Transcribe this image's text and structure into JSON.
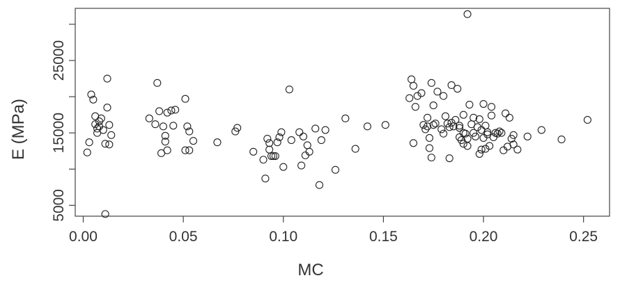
{
  "chart_data": {
    "type": "scatter",
    "title": "",
    "xlabel": "MC",
    "ylabel": "E (MPa)",
    "xlim": [
      -0.004,
      0.263
    ],
    "ylim": [
      3500,
      32200
    ],
    "grid": false,
    "xticks": [
      0.0,
      0.05,
      0.1,
      0.15,
      0.2,
      0.25
    ],
    "xtick_labels": [
      "0.00",
      "0.05",
      "0.10",
      "0.15",
      "0.20",
      "0.25"
    ],
    "yticks": [
      5000,
      15000,
      25000
    ],
    "ytick_labels": [
      "5000",
      "15000",
      "25000"
    ],
    "ytick_marks": [
      5000,
      10000,
      15000,
      20000,
      25000,
      30000
    ],
    "marker": "open-circle",
    "points": [
      [
        0.002,
        12300
      ],
      [
        0.003,
        13700
      ],
      [
        0.004,
        20300
      ],
      [
        0.005,
        19600
      ],
      [
        0.006,
        17300
      ],
      [
        0.006,
        16200
      ],
      [
        0.007,
        15600
      ],
      [
        0.007,
        15000
      ],
      [
        0.008,
        15900
      ],
      [
        0.008,
        16600
      ],
      [
        0.009,
        17000
      ],
      [
        0.01,
        15400
      ],
      [
        0.011,
        13500
      ],
      [
        0.011,
        3800
      ],
      [
        0.012,
        22500
      ],
      [
        0.012,
        18500
      ],
      [
        0.013,
        16100
      ],
      [
        0.013,
        13400
      ],
      [
        0.014,
        14700
      ],
      [
        0.033,
        17000
      ],
      [
        0.036,
        16200
      ],
      [
        0.037,
        21900
      ],
      [
        0.038,
        18000
      ],
      [
        0.039,
        12200
      ],
      [
        0.04,
        15900
      ],
      [
        0.041,
        14600
      ],
      [
        0.041,
        13800
      ],
      [
        0.042,
        12600
      ],
      [
        0.042,
        17800
      ],
      [
        0.044,
        18100
      ],
      [
        0.045,
        16000
      ],
      [
        0.046,
        18200
      ],
      [
        0.051,
        19700
      ],
      [
        0.051,
        12600
      ],
      [
        0.052,
        15900
      ],
      [
        0.053,
        12600
      ],
      [
        0.053,
        15200
      ],
      [
        0.055,
        13900
      ],
      [
        0.067,
        13700
      ],
      [
        0.076,
        15200
      ],
      [
        0.077,
        15700
      ],
      [
        0.085,
        12400
      ],
      [
        0.09,
        11300
      ],
      [
        0.091,
        8700
      ],
      [
        0.092,
        14200
      ],
      [
        0.093,
        13600
      ],
      [
        0.093,
        12700
      ],
      [
        0.094,
        11800
      ],
      [
        0.095,
        11800
      ],
      [
        0.096,
        11800
      ],
      [
        0.097,
        13700
      ],
      [
        0.098,
        14400
      ],
      [
        0.099,
        15100
      ],
      [
        0.1,
        10300
      ],
      [
        0.103,
        21000
      ],
      [
        0.104,
        14000
      ],
      [
        0.108,
        15100
      ],
      [
        0.109,
        10500
      ],
      [
        0.11,
        14500
      ],
      [
        0.111,
        11900
      ],
      [
        0.112,
        13300
      ],
      [
        0.113,
        12400
      ],
      [
        0.116,
        15600
      ],
      [
        0.118,
        7800
      ],
      [
        0.119,
        14000
      ],
      [
        0.121,
        15400
      ],
      [
        0.126,
        9900
      ],
      [
        0.131,
        17000
      ],
      [
        0.136,
        12800
      ],
      [
        0.142,
        15900
      ],
      [
        0.151,
        16100
      ],
      [
        0.163,
        19800
      ],
      [
        0.164,
        22400
      ],
      [
        0.165,
        13600
      ],
      [
        0.165,
        21500
      ],
      [
        0.166,
        18600
      ],
      [
        0.167,
        20100
      ],
      [
        0.169,
        20500
      ],
      [
        0.17,
        16100
      ],
      [
        0.171,
        15500
      ],
      [
        0.172,
        17100
      ],
      [
        0.172,
        15900
      ],
      [
        0.173,
        14300
      ],
      [
        0.173,
        12900
      ],
      [
        0.174,
        11600
      ],
      [
        0.174,
        21900
      ],
      [
        0.175,
        18800
      ],
      [
        0.175,
        16100
      ],
      [
        0.176,
        16300
      ],
      [
        0.177,
        20700
      ],
      [
        0.179,
        15500
      ],
      [
        0.18,
        20100
      ],
      [
        0.18,
        14900
      ],
      [
        0.181,
        17300
      ],
      [
        0.182,
        16300
      ],
      [
        0.183,
        15800
      ],
      [
        0.183,
        11500
      ],
      [
        0.184,
        21600
      ],
      [
        0.184,
        16400
      ],
      [
        0.185,
        15900
      ],
      [
        0.186,
        16800
      ],
      [
        0.187,
        21100
      ],
      [
        0.188,
        15700
      ],
      [
        0.188,
        14400
      ],
      [
        0.188,
        16000
      ],
      [
        0.189,
        14000
      ],
      [
        0.19,
        17500
      ],
      [
        0.19,
        15000
      ],
      [
        0.19,
        13500
      ],
      [
        0.191,
        14900
      ],
      [
        0.192,
        14200
      ],
      [
        0.192,
        13200
      ],
      [
        0.192,
        31400
      ],
      [
        0.193,
        18900
      ],
      [
        0.194,
        16200
      ],
      [
        0.195,
        17100
      ],
      [
        0.195,
        15000
      ],
      [
        0.196,
        14500
      ],
      [
        0.197,
        15800
      ],
      [
        0.198,
        12100
      ],
      [
        0.198,
        16900
      ],
      [
        0.199,
        12700
      ],
      [
        0.199,
        15400
      ],
      [
        0.2,
        19000
      ],
      [
        0.2,
        14300
      ],
      [
        0.201,
        16000
      ],
      [
        0.201,
        12800
      ],
      [
        0.202,
        15100
      ],
      [
        0.202,
        14800
      ],
      [
        0.203,
        13200
      ],
      [
        0.204,
        18600
      ],
      [
        0.204,
        17400
      ],
      [
        0.205,
        14400
      ],
      [
        0.206,
        15000
      ],
      [
        0.207,
        14900
      ],
      [
        0.208,
        15200
      ],
      [
        0.209,
        15000
      ],
      [
        0.21,
        12600
      ],
      [
        0.211,
        17700
      ],
      [
        0.212,
        13100
      ],
      [
        0.213,
        17100
      ],
      [
        0.214,
        14200
      ],
      [
        0.215,
        14700
      ],
      [
        0.215,
        13400
      ],
      [
        0.217,
        12700
      ],
      [
        0.222,
        14500
      ],
      [
        0.229,
        15400
      ],
      [
        0.239,
        14100
      ],
      [
        0.252,
        16800
      ]
    ]
  }
}
